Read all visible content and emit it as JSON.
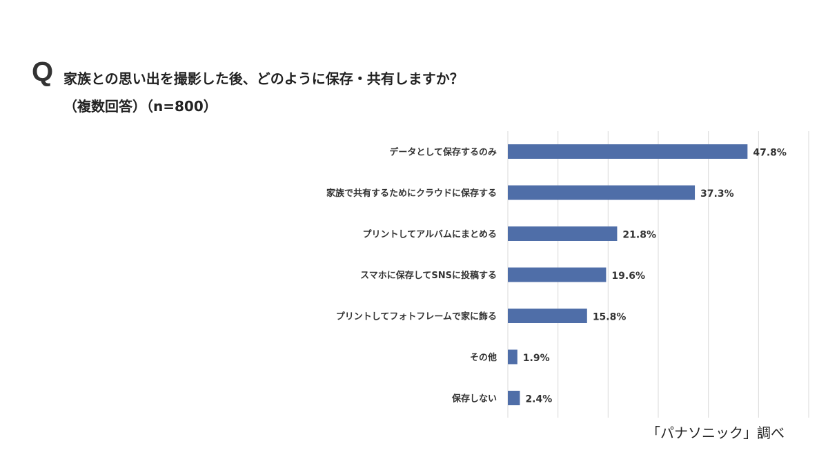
{
  "header": {
    "q_mark": "Q",
    "title": "家族との思い出を撮影した後、どのように保存・共有しますか？",
    "subtitle": "（複数回答）（n=800）"
  },
  "source": "「パナソニック」調べ",
  "chart_data": {
    "type": "bar",
    "orientation": "horizontal",
    "categories": [
      "データとして保存するのみ",
      "家族で共有するためにクラウドに保存する",
      "プリントしてアルバムにまとめる",
      "スマホに保存してSNSに投稿する",
      "プリントしてフォトフレームで家に飾る",
      "その他",
      "保存しない"
    ],
    "values": [
      47.8,
      37.3,
      21.8,
      19.6,
      15.8,
      1.9,
      2.4
    ],
    "data_labels": [
      "47.8%",
      "37.3%",
      "21.8%",
      "19.6%",
      "15.8%",
      "1.9%",
      "2.4%"
    ],
    "xlim": [
      0,
      60
    ],
    "grid": true,
    "grid_step": 10,
    "bar_color": "#4f6ea8",
    "legend": "none"
  }
}
